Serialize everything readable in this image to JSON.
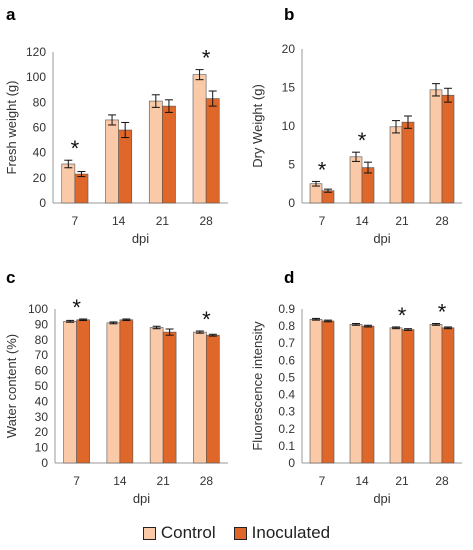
{
  "colors": {
    "control": "#FAC9A8",
    "inoculated": "#E0672A",
    "axis": "#999999",
    "bar_edge": "#555555"
  },
  "legend": [
    {
      "label": "Control",
      "color": "#FAC9A8"
    },
    {
      "label": "Inoculated",
      "color": "#E0672A"
    }
  ],
  "chart_data": [
    {
      "panel": "a",
      "type": "bar",
      "categories": [
        "7",
        "14",
        "21",
        "28"
      ],
      "xlabel": "dpi",
      "ylabel": "Fresh weight (g)",
      "ylim": [
        0,
        120
      ],
      "yticks": [
        0,
        20,
        40,
        60,
        80,
        100,
        120
      ],
      "series": [
        {
          "name": "Control",
          "values": [
            31,
            66,
            81,
            102
          ],
          "errors": [
            3,
            4,
            5,
            4
          ]
        },
        {
          "name": "Inoculated",
          "values": [
            23,
            58,
            77,
            83
          ],
          "errors": [
            2,
            6,
            5,
            6
          ]
        }
      ],
      "significant": [
        "7",
        "28"
      ],
      "annotation": "*",
      "grid": false
    },
    {
      "panel": "b",
      "type": "bar",
      "categories": [
        "7",
        "14",
        "21",
        "28"
      ],
      "xlabel": "dpi",
      "ylabel": "Dry Weight (g)",
      "ylim": [
        0,
        20
      ],
      "yticks": [
        0,
        5,
        10,
        15,
        20
      ],
      "series": [
        {
          "name": "Control",
          "values": [
            2.5,
            6.0,
            9.9,
            14.7
          ],
          "errors": [
            0.3,
            0.6,
            0.8,
            0.8
          ]
        },
        {
          "name": "Inoculated",
          "values": [
            1.6,
            4.6,
            10.5,
            14.0
          ],
          "errors": [
            0.2,
            0.7,
            0.8,
            0.9
          ]
        }
      ],
      "significant": [
        "7",
        "14"
      ],
      "annotation": "*",
      "grid": false
    },
    {
      "panel": "c",
      "type": "bar",
      "categories": [
        "7",
        "14",
        "21",
        "28"
      ],
      "xlabel": "dpi",
      "ylabel": "Water content (%)",
      "ylim": [
        0,
        100
      ],
      "yticks": [
        0,
        10,
        20,
        30,
        40,
        50,
        60,
        70,
        80,
        90,
        100
      ],
      "series": [
        {
          "name": "Control",
          "values": [
            92,
            91,
            88,
            85
          ],
          "errors": [
            0.6,
            0.6,
            0.8,
            0.7
          ]
        },
        {
          "name": "Inoculated",
          "values": [
            93,
            93,
            85,
            83
          ],
          "errors": [
            0.5,
            0.5,
            2,
            0.6
          ]
        }
      ],
      "significant": [
        "7",
        "28"
      ],
      "annotation": "*",
      "grid": false
    },
    {
      "panel": "d",
      "type": "bar",
      "categories": [
        "7",
        "14",
        "21",
        "28"
      ],
      "xlabel": "dpi",
      "ylabel": "Fluorescence intensity",
      "ylim": [
        0,
        0.9
      ],
      "yticks": [
        0,
        0.1,
        0.2,
        0.3,
        0.4,
        0.5,
        0.6,
        0.7,
        0.8,
        0.9
      ],
      "series": [
        {
          "name": "Control",
          "values": [
            0.84,
            0.81,
            0.79,
            0.81
          ],
          "errors": [
            0.005,
            0.005,
            0.005,
            0.005
          ]
        },
        {
          "name": "Inoculated",
          "values": [
            0.83,
            0.8,
            0.78,
            0.79
          ],
          "errors": [
            0.005,
            0.005,
            0.005,
            0.005
          ]
        }
      ],
      "significant": [
        "21",
        "28"
      ],
      "annotation": "*",
      "grid": false
    }
  ]
}
